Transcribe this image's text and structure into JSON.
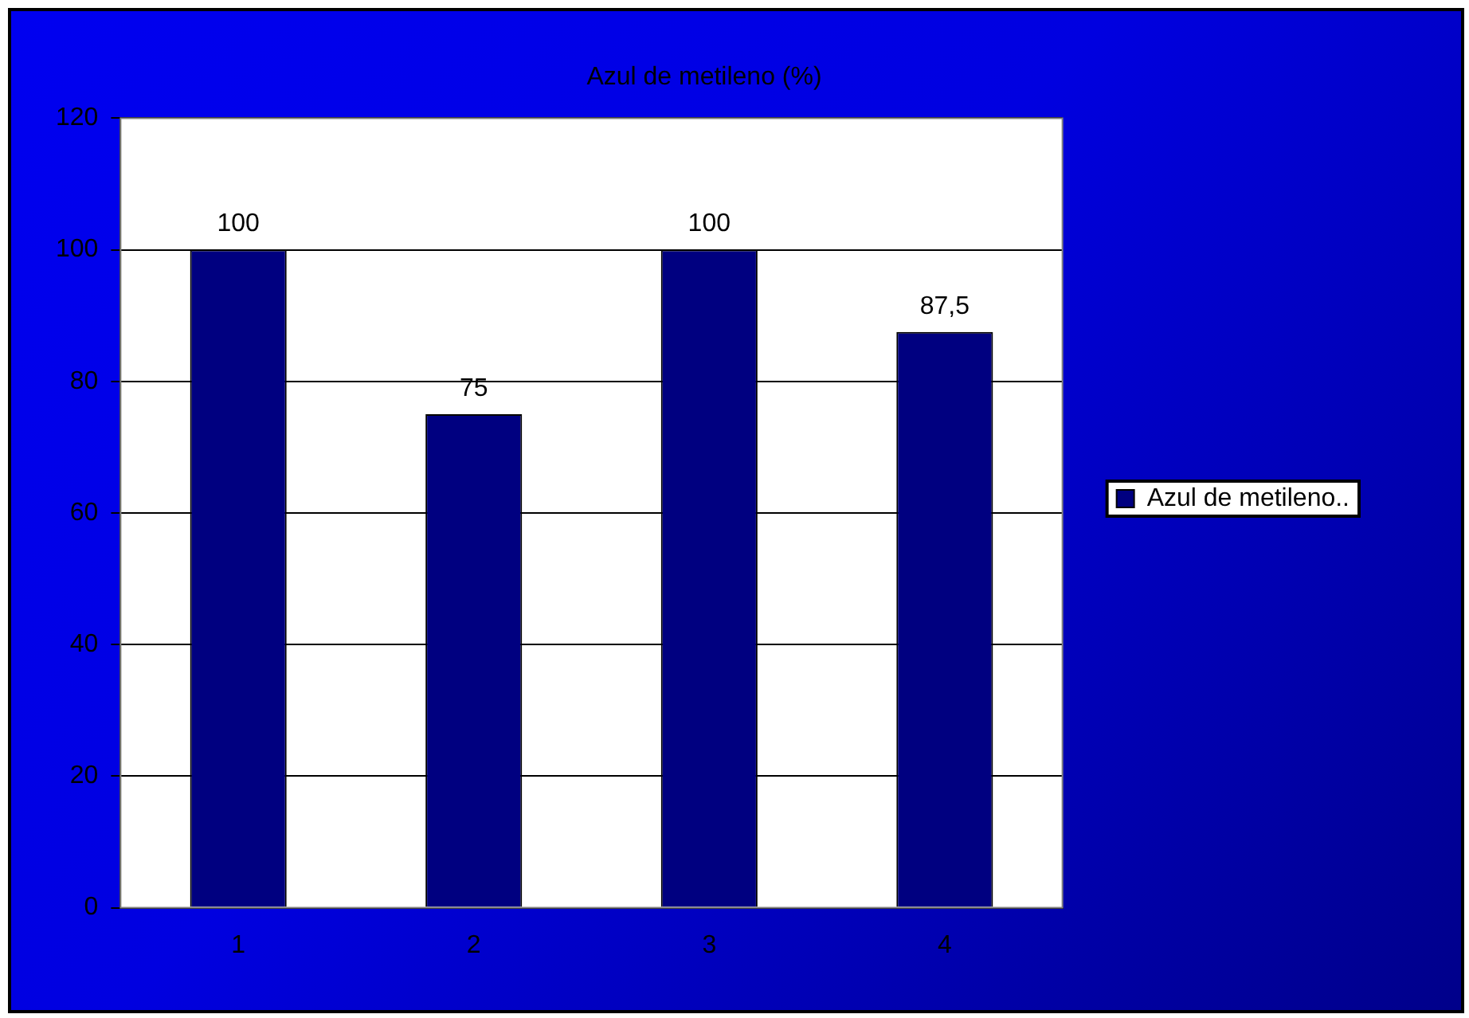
{
  "chart_data": {
    "type": "bar",
    "title": "Azul de metileno (%)",
    "categories": [
      "1",
      "2",
      "3",
      "4"
    ],
    "series": [
      {
        "name": "Azul de metileno..",
        "color": "#000080",
        "values": [
          100,
          75,
          100,
          87.5
        ],
        "value_labels": [
          "100",
          "75",
          "100",
          "87,5"
        ]
      }
    ],
    "ylim": [
      0,
      120
    ],
    "yticks": [
      0,
      20,
      40,
      60,
      80,
      100,
      120
    ],
    "grid": "y",
    "legend": "right"
  }
}
